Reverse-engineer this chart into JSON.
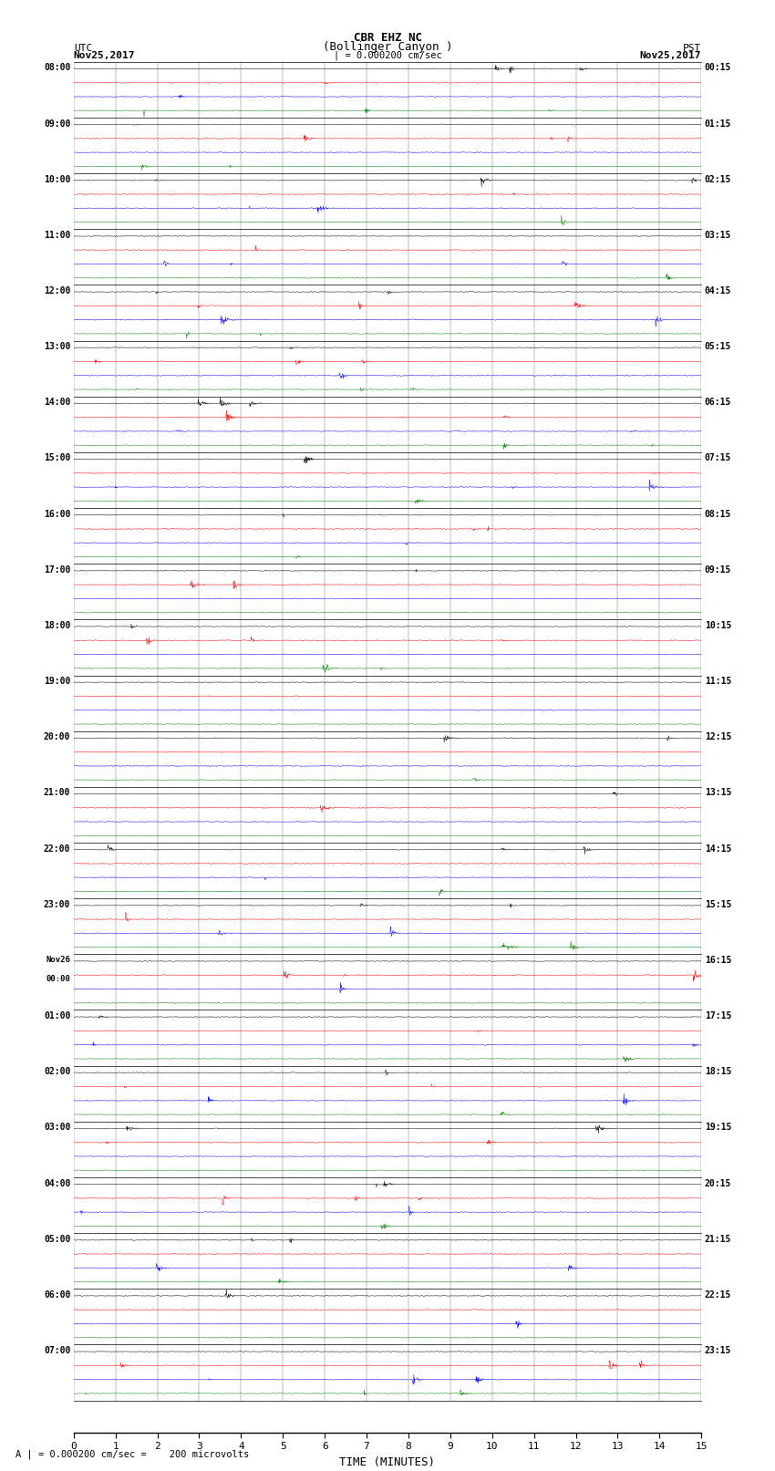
{
  "title_line1": "CBR EHZ NC",
  "title_line2": "(Bollinger Canyon )",
  "title_line3": "| = 0.000200 cm/sec",
  "left_header_line1": "UTC",
  "left_header_line2": "Nov25,2017",
  "right_header_line1": "PST",
  "right_header_line2": "Nov25,2017",
  "utc_labels": [
    "08:00",
    "09:00",
    "10:00",
    "11:00",
    "12:00",
    "13:00",
    "14:00",
    "15:00",
    "16:00",
    "17:00",
    "18:00",
    "19:00",
    "20:00",
    "21:00",
    "22:00",
    "23:00",
    "Nov26\n00:00",
    "01:00",
    "02:00",
    "03:00",
    "04:00",
    "05:00",
    "06:00",
    "07:00"
  ],
  "pst_labels": [
    "00:15",
    "01:15",
    "02:15",
    "03:15",
    "04:15",
    "05:15",
    "06:15",
    "07:15",
    "08:15",
    "09:15",
    "10:15",
    "11:15",
    "12:15",
    "13:15",
    "14:15",
    "15:15",
    "16:15",
    "17:15",
    "18:15",
    "19:15",
    "20:15",
    "21:15",
    "22:15",
    "23:15"
  ],
  "n_rows": 24,
  "traces_per_row": 4,
  "trace_colors": [
    "black",
    "red",
    "blue",
    "green"
  ],
  "xlabel": "TIME (MINUTES)",
  "xticks": [
    0,
    1,
    2,
    3,
    4,
    5,
    6,
    7,
    8,
    9,
    10,
    11,
    12,
    13,
    14,
    15
  ],
  "xmin": 0,
  "xmax": 15,
  "background_color": "white",
  "footer_text": "A | = 0.000200 cm/sec =    200 microvolts",
  "fig_width": 8.5,
  "fig_height": 16.13
}
